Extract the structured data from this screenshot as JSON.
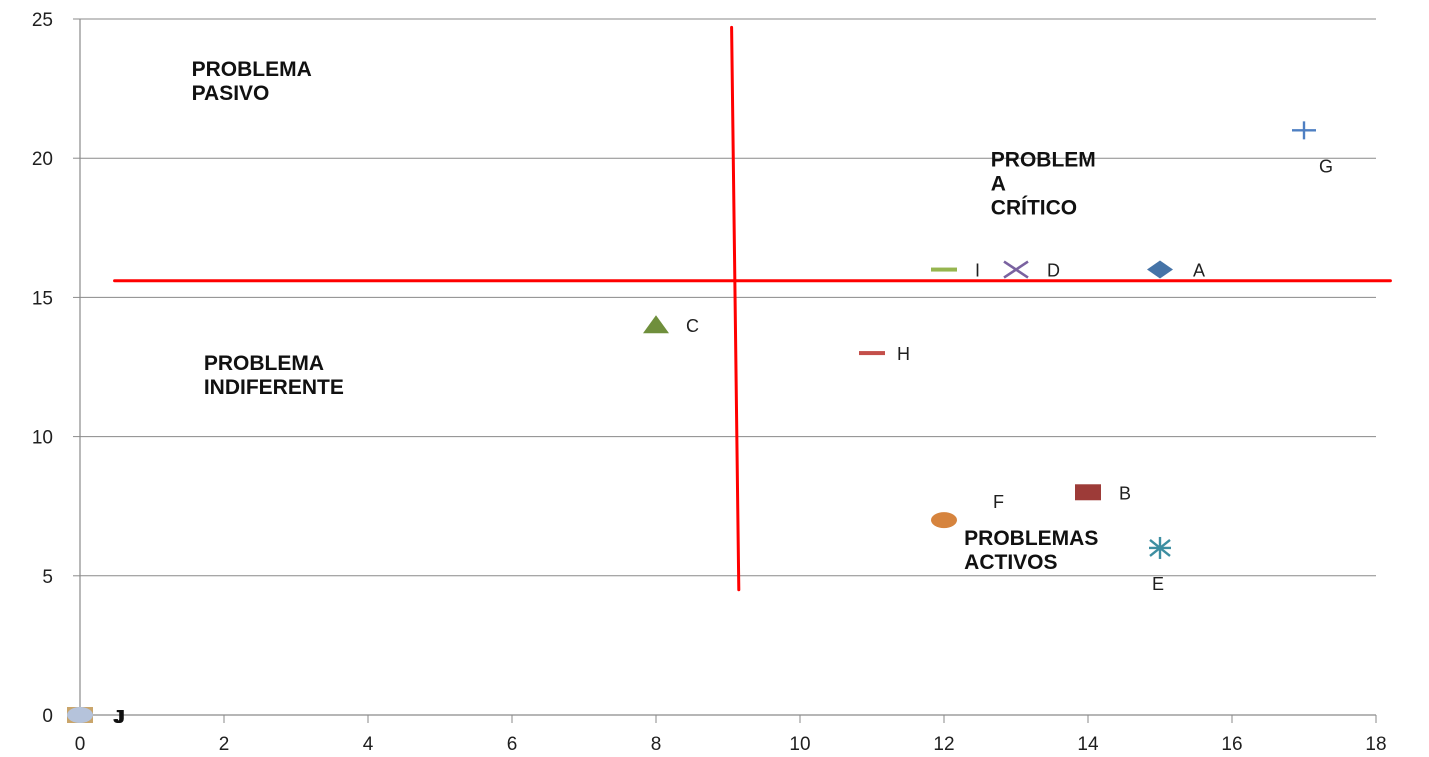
{
  "chart_data": {
    "type": "scatter",
    "title": "",
    "xlabel": "",
    "ylabel": "",
    "xlim": [
      0,
      18
    ],
    "ylim": [
      0,
      25
    ],
    "xticks": [
      0,
      2,
      4,
      6,
      8,
      10,
      12,
      14,
      16,
      18
    ],
    "yticks": [
      0,
      5,
      10,
      15,
      20,
      25
    ],
    "grid": {
      "horizontal": true,
      "vertical": false
    },
    "points": [
      {
        "label": "A",
        "x": 15,
        "y": 16,
        "marker": "diamond",
        "color": "#4573a7"
      },
      {
        "label": "B",
        "x": 14,
        "y": 8,
        "marker": "square",
        "color": "#9d3b38"
      },
      {
        "label": "C",
        "x": 8,
        "y": 14,
        "marker": "triangle",
        "color": "#6f8f3c"
      },
      {
        "label": "D",
        "x": 13,
        "y": 16,
        "marker": "x",
        "color": "#7a62a0"
      },
      {
        "label": "E",
        "x": 15,
        "y": 6,
        "marker": "asterisk",
        "color": "#3d8ea1"
      },
      {
        "label": "F",
        "x": 12,
        "y": 7,
        "marker": "circle",
        "color": "#d6843e"
      },
      {
        "label": "G",
        "x": 17,
        "y": 21,
        "marker": "plus",
        "color": "#4e7fc2"
      },
      {
        "label": "H",
        "x": 11,
        "y": 13,
        "marker": "dash",
        "color": "#c44f4a"
      },
      {
        "label": "I",
        "x": 12,
        "y": 16,
        "marker": "dash",
        "color": "#96b54f"
      }
    ],
    "origin_points": [
      {
        "x": 0,
        "y": 0,
        "marker": "circle",
        "color": "#a8b8d8"
      },
      {
        "x": 0,
        "y": 0,
        "marker": "square",
        "color": "#c9a56b"
      },
      {
        "x": 0,
        "y": 0,
        "marker": "circle",
        "color": "#b5c3db"
      }
    ],
    "origin_label_text": "J",
    "quadrant_labels": [
      {
        "lines": [
          "PROBLEMA",
          "PASIVO"
        ]
      },
      {
        "lines": [
          "PROBLEM",
          "A",
          "CRÍTICO"
        ]
      },
      {
        "lines": [
          "PROBLEMA",
          "INDIFERENTE"
        ]
      },
      {
        "lines": [
          "PROBLEMAS",
          "ACTIVOS"
        ]
      }
    ],
    "reference_lines": [
      {
        "name": "vertical-divider",
        "x1": 9.05,
        "y1": 24.7,
        "x2": 9.15,
        "y2": 4.5,
        "color": "#ff0000"
      },
      {
        "name": "horizontal-divider",
        "x1": 0.48,
        "y1": 15.6,
        "x2": 18.2,
        "y2": 15.6,
        "color": "#ff0000"
      }
    ]
  }
}
